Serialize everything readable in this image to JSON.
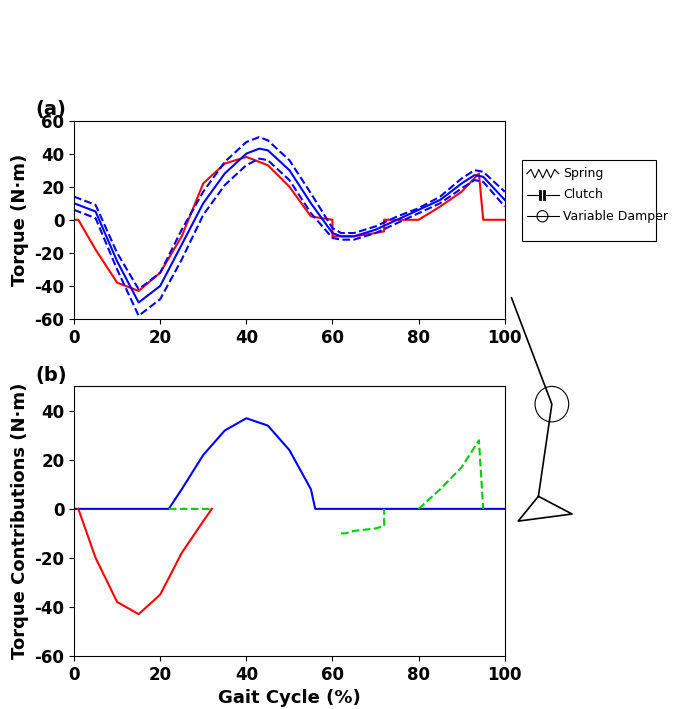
{
  "chart_data": [
    {
      "type": "line",
      "title": "(a)",
      "ylabel": "Torque (N·m)",
      "xlim": [
        0,
        100
      ],
      "xticks": [
        0,
        20,
        40,
        60,
        80,
        100
      ],
      "ylim": [
        -60,
        60
      ],
      "yticks": [
        -60,
        -40,
        -20,
        0,
        20,
        40,
        60
      ],
      "series": [
        {
          "color": "#ff0000",
          "line_style": "solid",
          "x": [
            0,
            1,
            5,
            10,
            15,
            20,
            25,
            30,
            35,
            40,
            45,
            50,
            55,
            60,
            60,
            65,
            70,
            72,
            72,
            80,
            85,
            90,
            94,
            95,
            100
          ],
          "values": [
            0,
            0,
            -18,
            -38,
            -43,
            -32,
            -10,
            22,
            34,
            38,
            33,
            20,
            2,
            0,
            -10,
            -10,
            -8,
            -7,
            0,
            0,
            8,
            17,
            28,
            0,
            0
          ]
        },
        {
          "color": "#0000ff",
          "line_style": "solid",
          "x": [
            0,
            5,
            10,
            15,
            20,
            25,
            30,
            35,
            40,
            43,
            45,
            50,
            55,
            60,
            62,
            65,
            70,
            75,
            80,
            85,
            90,
            93,
            95,
            100
          ],
          "values": [
            10,
            5,
            -25,
            -50,
            -40,
            -15,
            10,
            28,
            40,
            43,
            42,
            30,
            10,
            -8,
            -10,
            -10,
            -6,
            0,
            6,
            12,
            22,
            27,
            26,
            12
          ]
        },
        {
          "color": "#0000ff",
          "line_style": "dashed",
          "x": [
            0,
            5,
            10,
            15,
            20,
            25,
            30,
            35,
            40,
            43,
            45,
            50,
            55,
            60,
            62,
            65,
            70,
            75,
            80,
            85,
            90,
            93,
            95,
            100
          ],
          "values": [
            14,
            9,
            -20,
            -42,
            -32,
            -6,
            17,
            35,
            47,
            50,
            48,
            36,
            16,
            -5,
            -8,
            -8,
            -4,
            2,
            7,
            14,
            25,
            30,
            29,
            17
          ]
        },
        {
          "color": "#0000ff",
          "line_style": "dashed",
          "x": [
            0,
            5,
            10,
            15,
            20,
            25,
            30,
            35,
            40,
            43,
            45,
            50,
            55,
            60,
            62,
            65,
            70,
            75,
            80,
            85,
            90,
            93,
            95,
            100
          ],
          "values": [
            6,
            1,
            -30,
            -58,
            -48,
            -24,
            3,
            21,
            33,
            37,
            36,
            24,
            4,
            -11,
            -12,
            -12,
            -8,
            -2,
            4,
            10,
            19,
            24,
            23,
            8
          ]
        }
      ]
    },
    {
      "type": "line",
      "title": "(b)",
      "ylabel": "Torque Contributions (N·m)",
      "xlabel": "Gait Cycle (%)",
      "xlim": [
        0,
        100
      ],
      "xticks": [
        0,
        20,
        40,
        60,
        80,
        100
      ],
      "ylim": [
        -60,
        50
      ],
      "yticks": [
        -60,
        -40,
        -20,
        0,
        20,
        40
      ],
      "series": [
        {
          "color": "#0000ff",
          "line_style": "solid",
          "x": [
            0,
            22,
            25,
            30,
            35,
            40,
            45,
            50,
            55,
            56,
            100
          ],
          "values": [
            0,
            0,
            8,
            22,
            32,
            37,
            34,
            24,
            8,
            0,
            0
          ]
        },
        {
          "color": "#ff0000",
          "line_style": "solid",
          "x": [
            1,
            5,
            10,
            15,
            20,
            25,
            30,
            32
          ],
          "values": [
            0,
            -20,
            -38,
            -43,
            -35,
            -18,
            -5,
            0
          ]
        },
        {
          "color": "#00cc00",
          "line_style": "dashed",
          "x": [
            22,
            32,
            40,
            62,
            63,
            65,
            70,
            72,
            72,
            76,
            80,
            85,
            90,
            94,
            95
          ],
          "values": [
            0,
            0,
            null,
            -10,
            -10,
            -9,
            -8,
            -7,
            0,
            null,
            0,
            8,
            17,
            28,
            0
          ]
        }
      ]
    }
  ],
  "annotations": [
    "Spring",
    "Clutch",
    "Variable Damper"
  ]
}
